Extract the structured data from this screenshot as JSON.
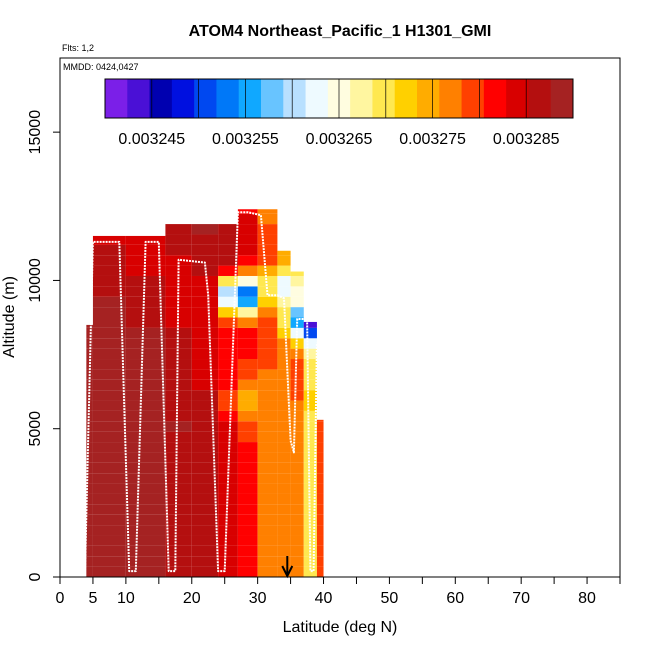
{
  "chart_data": {
    "type": "heatmap",
    "title": "ATOM4 Northeast_Pacific_1 H1301_GMI",
    "flights_label": "Flts: 1,2",
    "dates_label": "MMDD: 0424,0427",
    "xlabel": "Latitude (deg N)",
    "ylabel": "Altitude (m)",
    "xlim": [
      0,
      85
    ],
    "ylim": [
      0,
      17500
    ],
    "x_ticks": [
      0,
      5,
      10,
      20,
      30,
      40,
      50,
      60,
      70,
      80
    ],
    "x_minor_ticks": [
      15,
      25,
      35,
      45,
      55,
      65,
      75,
      85
    ],
    "y_ticks": [
      0,
      5000,
      10000,
      15000
    ],
    "grid": false,
    "colorbar": {
      "position": "top",
      "range": [
        0.00324,
        0.00329
      ],
      "tick_values": [
        0.003245,
        0.003255,
        0.003265,
        0.003275,
        0.003285
      ],
      "tick_labels": [
        "0.003245",
        "0.003255",
        "0.003265",
        "0.003275",
        "0.003285"
      ],
      "colors": [
        "#7b1fe8",
        "#4a10d6",
        "#0000b0",
        "#0010e0",
        "#0048f0",
        "#0078f8",
        "#10a8ff",
        "#68c4ff",
        "#b8e0ff",
        "#eefaff",
        "#fffde0",
        "#fff6a0",
        "#ffe850",
        "#ffd000",
        "#ffac00",
        "#ff8000",
        "#ff4000",
        "#ff0000",
        "#d80000",
        "#b40f0f",
        "#a52222"
      ]
    },
    "curtain_columns": [
      {
        "lat": 4,
        "alt_top": 8500,
        "value": 0.003288
      },
      {
        "lat": 5,
        "alt_top": 11500,
        "value": 0.003288
      },
      {
        "lat": 10,
        "alt_top": 11500,
        "value": 0.003288
      },
      {
        "lat": 16,
        "alt_top": 11900,
        "value": 0.003287
      },
      {
        "lat": 20,
        "alt_top": 11900,
        "value": 0.003286
      },
      {
        "lat": 24,
        "alt_top": 11900,
        "value": 0.003284
      },
      {
        "lat": 27,
        "alt_top": 12400,
        "value": 0.003281
      },
      {
        "lat": 30,
        "alt_top": 12400,
        "value": 0.003278
      },
      {
        "lat": 33,
        "alt_top": 11000,
        "value": 0.003276
      },
      {
        "lat": 35,
        "alt_top": 10300,
        "value": 0.003277
      },
      {
        "lat": 37,
        "alt_top": 8600,
        "value": 0.00327
      },
      {
        "lat": 39,
        "alt_top": 5300,
        "value": 0.003279
      }
    ],
    "notable_features": [
      {
        "lat": 27,
        "alt": 6000,
        "value": 0.003274
      },
      {
        "lat": 26,
        "alt": 9500,
        "value": 0.003248
      },
      {
        "lat": 33,
        "alt": 9800,
        "value": 0.003262
      },
      {
        "lat": 37,
        "alt": 8600,
        "value": 0.003244
      }
    ],
    "flight_track": {
      "lat": [
        3.8,
        5,
        7,
        9,
        10.5,
        11.5,
        13,
        15,
        16.5,
        17.5,
        18,
        22,
        22.5,
        24,
        25,
        27,
        28.5,
        30.5,
        31.5,
        33,
        34,
        35,
        35.5,
        36,
        37.5,
        38,
        38.5,
        39
      ],
      "alt": [
        200,
        11300,
        11300,
        11300,
        200,
        200,
        11300,
        11300,
        200,
        200,
        10700,
        10600,
        9500,
        200,
        200,
        12300,
        12300,
        12200,
        9500,
        9500,
        9400,
        4600,
        4200,
        8700,
        8700,
        200,
        200,
        7900
      ]
    },
    "marker": {
      "lat": 34.5,
      "type": "arrow-down"
    }
  }
}
